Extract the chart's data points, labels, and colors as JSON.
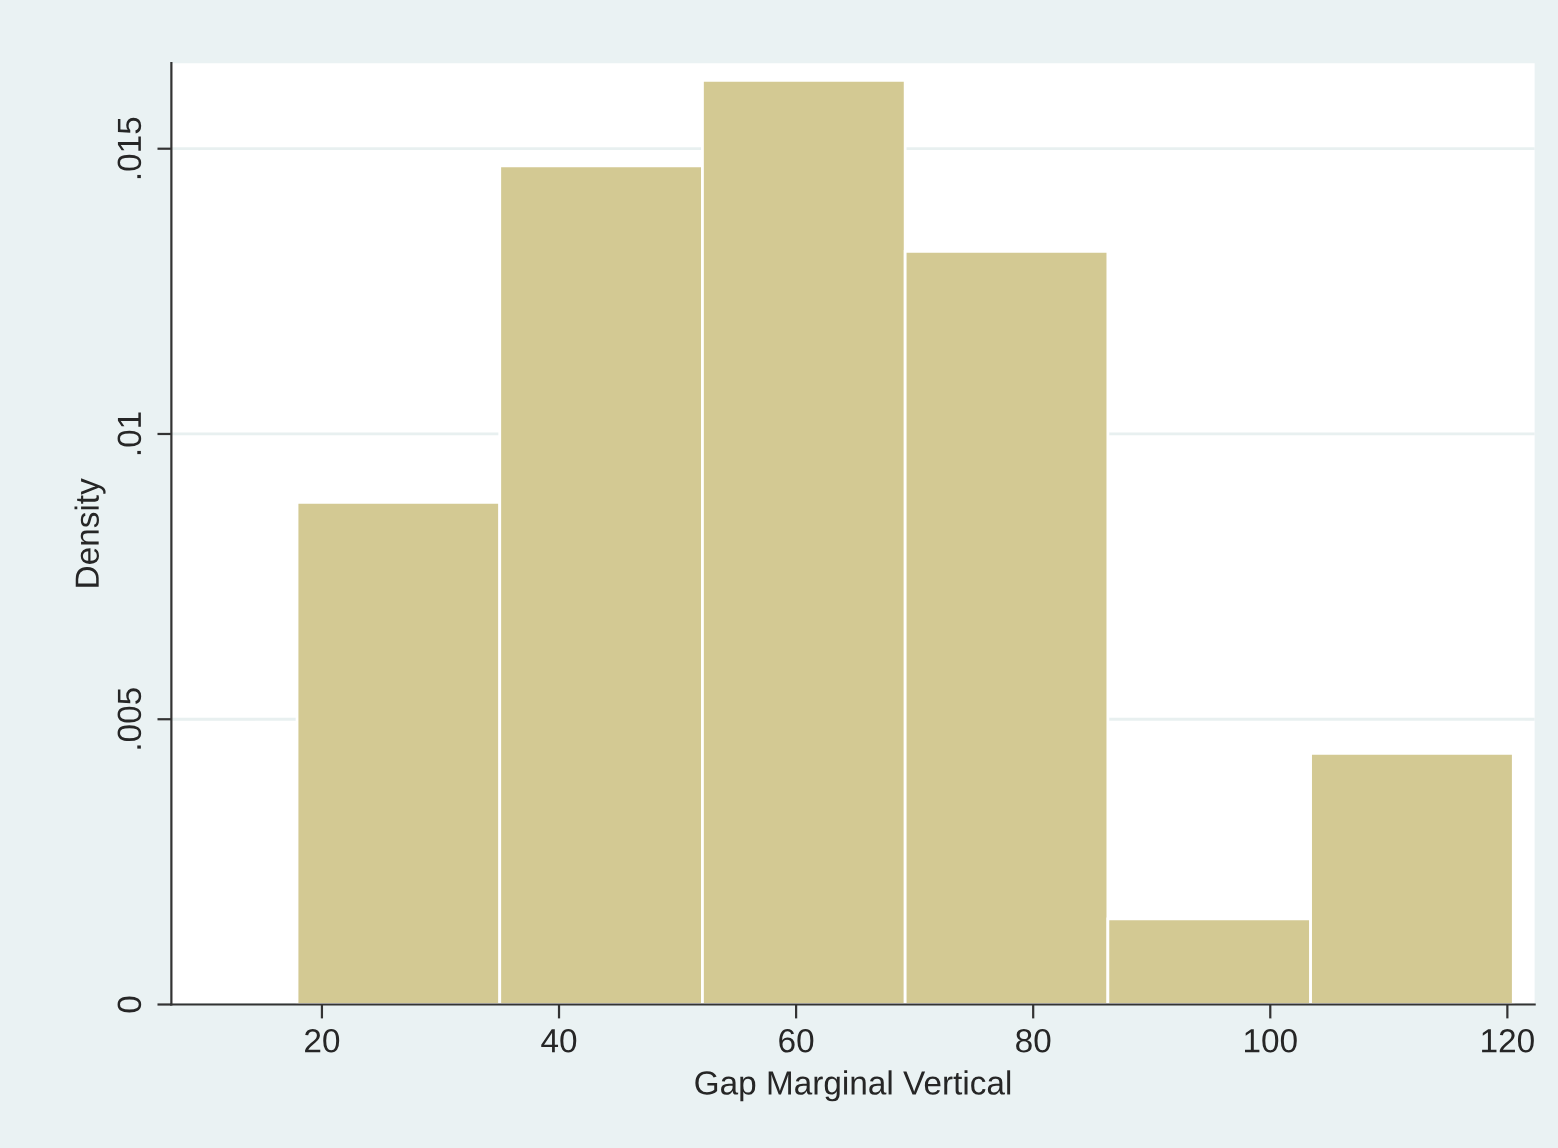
{
  "chart_data": {
    "type": "histogram",
    "xlabel": "Gap Marginal Vertical",
    "ylabel": "Density",
    "bins": [
      17.9,
      35.0,
      52.1,
      69.2,
      86.3,
      103.4,
      120.5
    ],
    "values": [
      0.0088,
      0.0147,
      0.0162,
      0.0132,
      0.0015,
      0.0044
    ],
    "color": "#d3c993",
    "xlim": [
      7.3,
      122.3
    ],
    "xticks": [
      20,
      40,
      60,
      80,
      100,
      120
    ],
    "ylim": [
      0,
      0.0165
    ],
    "yticks": [
      {
        "value": 0,
        "label": "0"
      },
      {
        "value": 0.005,
        "label": ".005"
      },
      {
        "value": 0.01,
        "label": ".01"
      },
      {
        "value": 0.015,
        "label": ".015"
      }
    ],
    "grid": "y"
  }
}
